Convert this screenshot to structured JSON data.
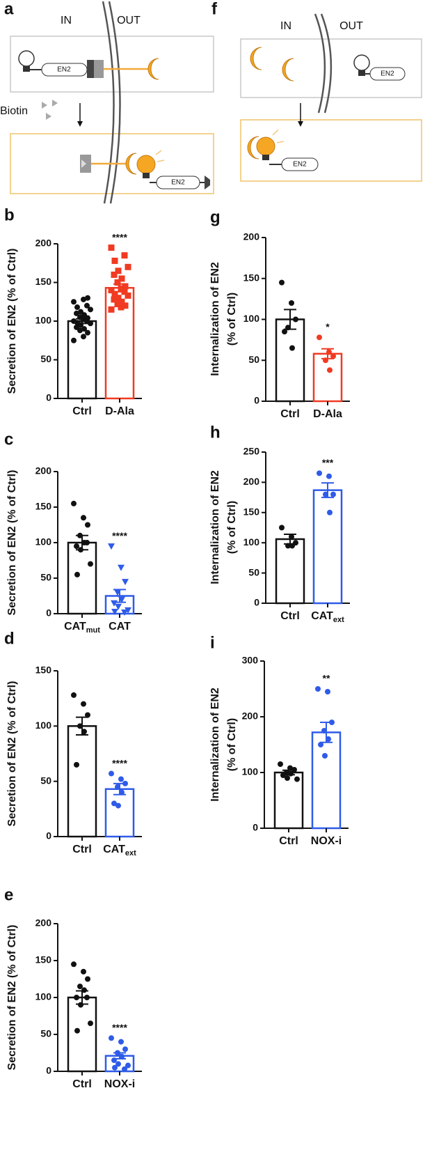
{
  "diagram_a": {
    "panel": "a",
    "inside": "IN",
    "outside": "OUT",
    "reagent": "Biotin",
    "protein_top": "EN2",
    "protein_bottom": "EN2"
  },
  "diagram_f": {
    "panel": "f",
    "inside": "IN",
    "outside": "OUT",
    "protein_top": "EN2",
    "protein_bottom": "EN2"
  },
  "chart_data": [
    {
      "type": "bar",
      "panel": "b",
      "ylabel": [
        "Secretion of EN2 (% of Ctrl)"
      ],
      "categories": [
        "Ctrl",
        "D-Ala"
      ],
      "values": [
        100,
        143
      ],
      "errors": [
        3,
        5
      ],
      "colors": [
        "#111111",
        "#f03a22"
      ],
      "markers": [
        "circle",
        "square"
      ],
      "points": [
        [
          75,
          80,
          85,
          88,
          90,
          92,
          95,
          97,
          98,
          100,
          100,
          102,
          104,
          105,
          108,
          110,
          112,
          115,
          118,
          120,
          125,
          128,
          130
        ],
        [
          115,
          118,
          120,
          122,
          125,
          128,
          130,
          133,
          135,
          138,
          140,
          142,
          145,
          150,
          155,
          160,
          165,
          170,
          178,
          185,
          195
        ]
      ],
      "significance": "****",
      "ylim": [
        0,
        200
      ],
      "yticks": [
        0,
        50,
        100,
        150,
        200
      ]
    },
    {
      "type": "bar",
      "panel": "c",
      "ylabel": [
        "Secretion of EN2 (% of Ctrl)"
      ],
      "categories": [
        "CAT",
        "CAT"
      ],
      "subscripts": {
        "0": "mut"
      },
      "values": [
        100,
        25
      ],
      "errors": [
        10,
        9
      ],
      "colors": [
        "#111111",
        "#2f5be8"
      ],
      "markers": [
        "circle",
        "triangle"
      ],
      "points": [
        [
          155,
          135,
          125,
          110,
          100,
          95,
          90,
          70,
          55,
          100
        ],
        [
          95,
          65,
          45,
          30,
          20,
          15,
          10,
          5,
          3,
          2
        ]
      ],
      "significance": "****",
      "ylim": [
        0,
        200
      ],
      "yticks": [
        0,
        50,
        100,
        150,
        200
      ]
    },
    {
      "type": "bar",
      "panel": "d",
      "ylabel": [
        "Secretion of EN2 (% of Ctrl)"
      ],
      "categories": [
        "Ctrl",
        "CAT"
      ],
      "subscripts": {
        "1": "ext"
      },
      "values": [
        100,
        43
      ],
      "errors": [
        8,
        5
      ],
      "colors": [
        "#111111",
        "#2f5be8"
      ],
      "markers": [
        "circle",
        "circle"
      ],
      "points": [
        [
          128,
          120,
          110,
          100,
          95,
          65
        ],
        [
          57,
          52,
          48,
          45,
          40,
          30,
          28
        ]
      ],
      "significance": "****",
      "ylim": [
        0,
        150
      ],
      "yticks": [
        0,
        50,
        100,
        150
      ]
    },
    {
      "type": "bar",
      "panel": "e",
      "ylabel": [
        "Secretion of EN2 (% of Ctrl)"
      ],
      "categories": [
        "Ctrl",
        "NOX-i"
      ],
      "values": [
        100,
        21
      ],
      "errors": [
        9,
        4
      ],
      "colors": [
        "#111111",
        "#2f5be8"
      ],
      "markers": [
        "circle",
        "circle"
      ],
      "points": [
        [
          145,
          135,
          125,
          115,
          110,
          100,
          90,
          65,
          55,
          100
        ],
        [
          45,
          40,
          30,
          25,
          20,
          15,
          10,
          8,
          5,
          3
        ]
      ],
      "significance": "****",
      "ylim": [
        0,
        200
      ],
      "yticks": [
        0,
        50,
        100,
        150,
        200
      ]
    },
    {
      "type": "bar",
      "panel": "g",
      "ylabel": [
        "Internalization of EN2",
        "(% of Ctrl)"
      ],
      "categories": [
        "Ctrl",
        "D-Ala"
      ],
      "values": [
        100,
        58
      ],
      "errors": [
        12,
        6
      ],
      "colors": [
        "#111111",
        "#f03a22"
      ],
      "markers": [
        "circle",
        "circle"
      ],
      "points": [
        [
          145,
          120,
          100,
          90,
          65,
          85
        ],
        [
          78,
          60,
          55,
          50,
          38
        ]
      ],
      "significance": "*",
      "ylim": [
        0,
        200
      ],
      "yticks": [
        0,
        50,
        100,
        150,
        200
      ]
    },
    {
      "type": "bar",
      "panel": "h",
      "ylabel": [
        "Internalization of EN2",
        "(% of Ctrl)"
      ],
      "categories": [
        "Ctrl",
        "CAT"
      ],
      "subscripts": {
        "1": "ext"
      },
      "values": [
        106,
        187
      ],
      "errors": [
        8,
        12
      ],
      "colors": [
        "#111111",
        "#2f5be8"
      ],
      "markers": [
        "circle",
        "circle"
      ],
      "points": [
        [
          125,
          110,
          100,
          95,
          95
        ],
        [
          215,
          210,
          180,
          180,
          150
        ]
      ],
      "significance": "***",
      "ylim": [
        0,
        250
      ],
      "yticks": [
        0,
        50,
        100,
        150,
        200,
        250
      ]
    },
    {
      "type": "bar",
      "panel": "i",
      "ylabel": [
        "Internalization of EN2",
        "(% of Ctrl)"
      ],
      "categories": [
        "Ctrl",
        "NOX-i"
      ],
      "values": [
        100,
        172
      ],
      "errors": [
        4,
        18
      ],
      "colors": [
        "#111111",
        "#2f5be8"
      ],
      "markers": [
        "circle",
        "circle"
      ],
      "points": [
        [
          115,
          108,
          105,
          100,
          98,
          95,
          90,
          88
        ],
        [
          250,
          245,
          190,
          175,
          160,
          150,
          130
        ]
      ],
      "significance": "**",
      "ylim": [
        0,
        300
      ],
      "yticks": [
        0,
        100,
        200,
        300
      ]
    }
  ]
}
